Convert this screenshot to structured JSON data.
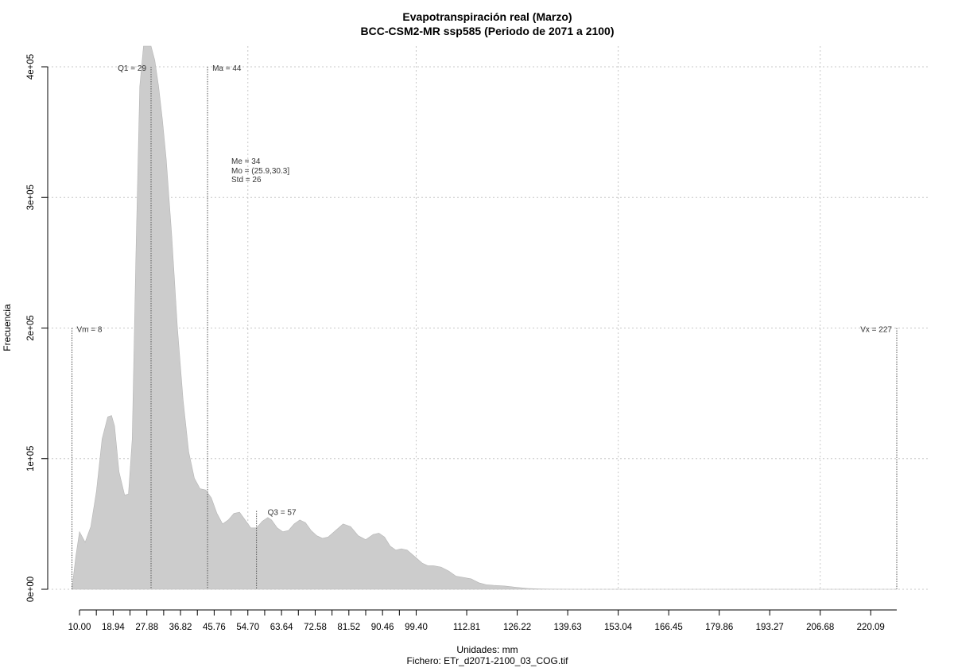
{
  "chart_data": {
    "type": "area",
    "title": "Evapotranspiración real (Marzo)",
    "subtitle": "BCC-CSM2-MR ssp585 (Periodo de 2071 a 2100)",
    "xlabel": "Unidades: mm",
    "ylabel": "Frecuencia",
    "footer": "Fichero: ETr_d2071-2100_03_COG.tif",
    "fill_color": "#cccccc",
    "grid": true,
    "xlim": [
      10.0,
      227.0
    ],
    "ylim": [
      0,
      400000
    ],
    "x_tick_values": [
      10.0,
      18.94,
      27.88,
      36.82,
      45.76,
      54.7,
      63.64,
      72.58,
      81.52,
      90.46,
      99.4,
      112.81,
      126.22,
      139.63,
      153.04,
      166.45,
      179.86,
      193.27,
      206.68,
      220.09
    ],
    "x_tick_labels": [
      "10.00",
      "18.94",
      "27.88",
      "36.82",
      "45.76",
      "54.70",
      "63.64",
      "72.58",
      "81.52",
      "90.46",
      "99.40",
      "112.81",
      "126.22",
      "139.63",
      "153.04",
      "166.45",
      "179.86",
      "193.27",
      "206.68",
      "220.09"
    ],
    "y_tick_values": [
      0,
      100000,
      200000,
      300000,
      400000
    ],
    "y_tick_labels": [
      "0e+00",
      "1e+05",
      "2e+05",
      "3e+05",
      "4e+05"
    ],
    "x_minor_tick_values": [
      14.47,
      23.41,
      32.35,
      41.29,
      50.23,
      59.17,
      68.11,
      77.05,
      85.99,
      94.93
    ],
    "x_grid_values": [
      54.7,
      99.4,
      153.04,
      206.68
    ],
    "x": [
      8.0,
      9.0,
      10.0,
      11.5,
      13.0,
      14.5,
      16.0,
      17.5,
      18.5,
      19.3,
      20.5,
      22.0,
      23.0,
      24.0,
      25.0,
      26.0,
      27.0,
      28.0,
      29.0,
      30.0,
      31.0,
      32.0,
      33.0,
      34.5,
      36.0,
      37.5,
      39.0,
      40.5,
      42.0,
      43.5,
      45.0,
      46.5,
      48.0,
      49.5,
      51.0,
      52.5,
      54.0,
      55.5,
      57.0,
      58.5,
      60.0,
      61.0,
      62.5,
      64.0,
      65.5,
      67.0,
      68.5,
      70.0,
      71.5,
      73.0,
      74.5,
      76.0,
      78.0,
      80.0,
      82.0,
      84.0,
      86.0,
      88.0,
      89.5,
      91.0,
      92.5,
      94.0,
      95.5,
      97.0,
      99.0,
      101.0,
      102.5,
      104.0,
      106.0,
      108.0,
      110.0,
      112.0,
      114.0,
      116.0,
      118.0,
      120.0,
      123.0,
      126.0,
      129.0,
      132.0,
      135.0,
      138.0,
      142.0,
      150.0,
      160.0,
      180.0,
      200.0,
      220.0,
      227.0
    ],
    "y": [
      0,
      25000,
      44000,
      36000,
      48000,
      75000,
      115000,
      132000,
      133000,
      125000,
      90000,
      72000,
      73000,
      115000,
      260000,
      385000,
      430000,
      430000,
      420000,
      405000,
      385000,
      360000,
      330000,
      270000,
      200000,
      145000,
      105000,
      85000,
      77000,
      76000,
      70000,
      58000,
      50000,
      53000,
      58000,
      59000,
      53000,
      47000,
      47000,
      52000,
      55000,
      53000,
      47000,
      44000,
      45000,
      50000,
      53000,
      51000,
      45000,
      41000,
      39000,
      40000,
      45000,
      50000,
      48000,
      41000,
      38000,
      42000,
      43000,
      40000,
      33000,
      30000,
      31000,
      30000,
      25000,
      20000,
      18000,
      18000,
      17000,
      14000,
      10000,
      9000,
      8000,
      5000,
      3500,
      3000,
      2500,
      1500,
      700,
      300,
      150,
      60,
      20,
      5,
      0,
      0,
      0,
      0,
      0
    ],
    "markers": [
      {
        "x": 8,
        "label": "Vm = 8",
        "y": 200000
      },
      {
        "x": 29,
        "label": "Q1 = 29",
        "y": 400000
      },
      {
        "x": 44,
        "label": "Ma = 44",
        "y": 400000
      },
      {
        "x": 57,
        "label": "Q3 = 57",
        "y": 60000
      },
      {
        "x": 227,
        "label": "Vx = 227",
        "y": 200000
      }
    ],
    "stats_text": [
      "Me = 34",
      "Mo = (25.9,30.3]",
      "Std = 26"
    ]
  }
}
